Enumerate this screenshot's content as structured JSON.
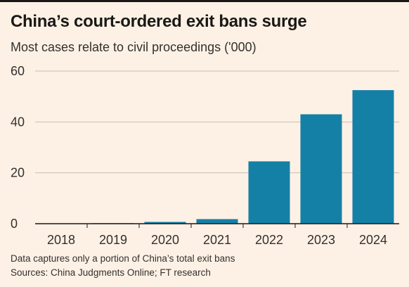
{
  "chart_data": {
    "type": "bar",
    "title": "China’s court-ordered exit bans surge",
    "subtitle": "Most cases relate to civil proceedings ('000)",
    "categories": [
      "2018",
      "2019",
      "2020",
      "2021",
      "2022",
      "2023",
      "2024"
    ],
    "values": [
      0.1,
      0.2,
      0.7,
      1.8,
      24.5,
      43.0,
      52.5
    ],
    "ylim": [
      0,
      60
    ],
    "yticks": [
      0,
      20,
      40,
      60
    ],
    "xlabel": "",
    "ylabel": "",
    "grid": true,
    "bar_color": "#1580a6",
    "note": "Data captures only a portion of China’s total exit bans",
    "source": "Sources: China Judgments Online; FT research"
  }
}
